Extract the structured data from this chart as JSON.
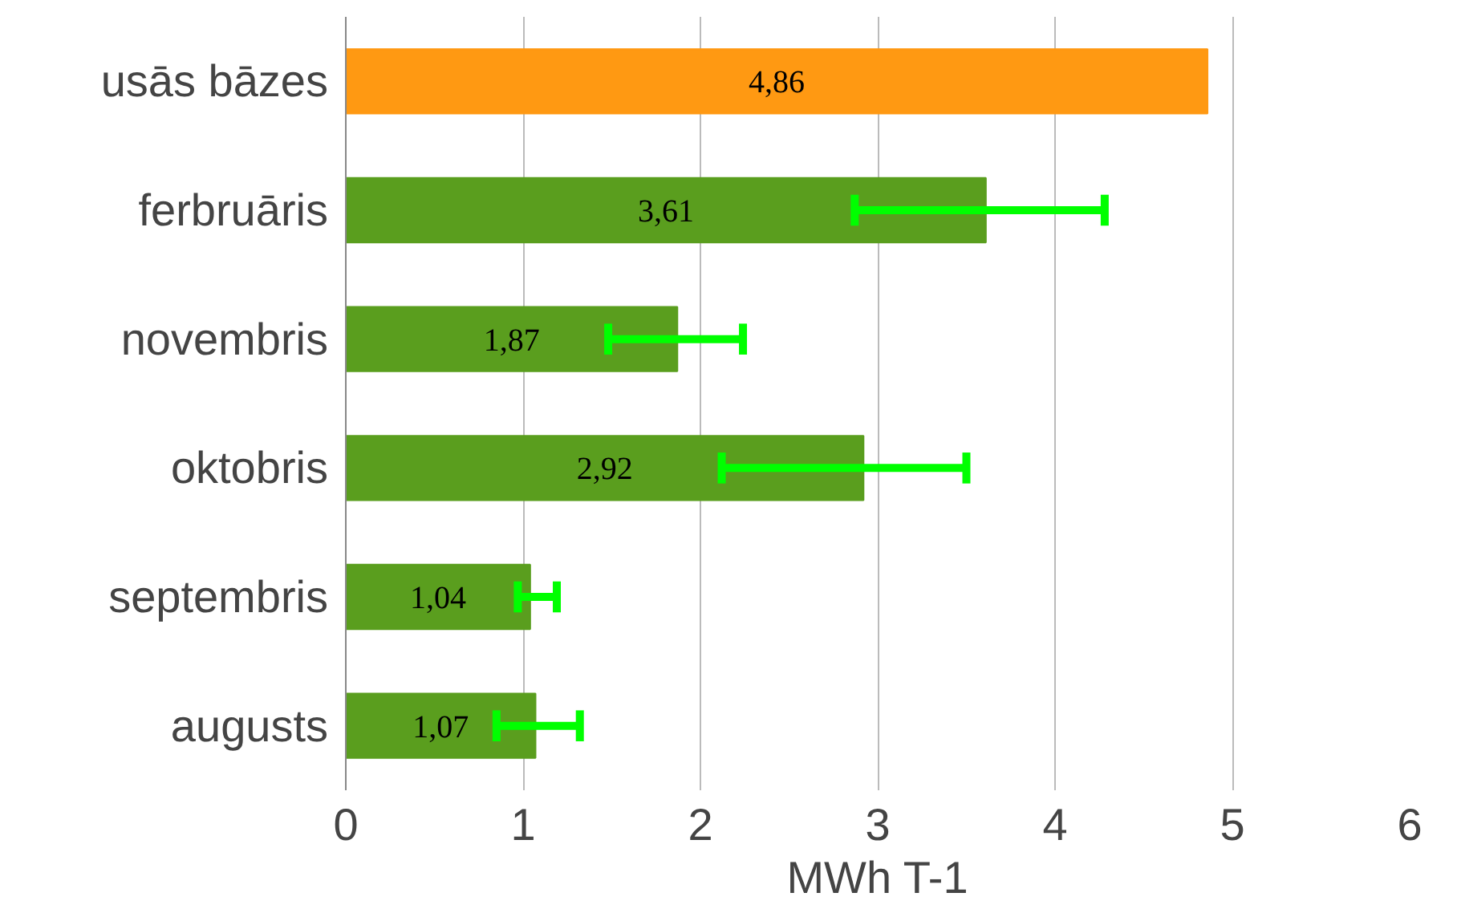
{
  "chart_data": {
    "type": "bar",
    "orientation": "horizontal",
    "xlabel": "MWh T-1",
    "categories": [
      "usās bāzes",
      "ferbruāris",
      "novembris",
      "oktobris",
      "septembris",
      "augusts"
    ],
    "values": [
      4.86,
      3.61,
      1.87,
      2.92,
      1.04,
      1.07
    ],
    "colors": [
      "#ff9912",
      "#5a9e1e",
      "#5a9e1e",
      "#5a9e1e",
      "#5a9e1e",
      "#5a9e1e"
    ],
    "errors": [
      null,
      [
        2.87,
        4.28
      ],
      [
        1.48,
        2.24
      ],
      [
        2.12,
        3.5
      ],
      [
        0.97,
        1.19
      ],
      [
        0.85,
        1.32
      ]
    ],
    "value_labels": [
      "4,86",
      "3,61",
      "1,87",
      "2,92",
      "1,04",
      "1,07"
    ],
    "xlim": [
      0,
      6
    ],
    "xticks": [
      0,
      1,
      2,
      3,
      4,
      5,
      6
    ],
    "grid": "x"
  }
}
